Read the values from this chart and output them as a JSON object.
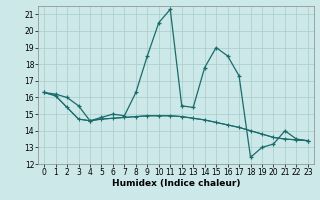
{
  "title": "",
  "xlabel": "Humidex (Indice chaleur)",
  "background_color": "#cce8e8",
  "grid_color": "#aacccc",
  "line_color": "#1a6b6b",
  "xlim": [
    -0.5,
    23.5
  ],
  "ylim": [
    12,
    21.5
  ],
  "yticks": [
    12,
    13,
    14,
    15,
    16,
    17,
    18,
    19,
    20,
    21
  ],
  "xticks": [
    0,
    1,
    2,
    3,
    4,
    5,
    6,
    7,
    8,
    9,
    10,
    11,
    12,
    13,
    14,
    15,
    16,
    17,
    18,
    19,
    20,
    21,
    22,
    23
  ],
  "series1": [
    16.3,
    16.2,
    16.0,
    15.5,
    14.6,
    14.8,
    15.0,
    14.9,
    16.3,
    18.5,
    20.5,
    21.3,
    15.5,
    15.4,
    17.8,
    19.0,
    18.5,
    17.3,
    12.4,
    13.0,
    13.2,
    14.0,
    13.5,
    13.4
  ],
  "series2": [
    16.3,
    16.1,
    15.4,
    14.7,
    14.6,
    14.7,
    14.75,
    14.8,
    14.85,
    14.9,
    14.9,
    14.9,
    14.85,
    14.75,
    14.65,
    14.5,
    14.35,
    14.2,
    14.0,
    13.8,
    13.6,
    13.5,
    13.45,
    13.4
  ],
  "series3": [
    16.3,
    16.1,
    15.4,
    14.7,
    14.6,
    14.7,
    14.75,
    14.8,
    14.85,
    14.9,
    14.9,
    14.9,
    14.85,
    14.75,
    14.65,
    14.5,
    14.35,
    14.2,
    14.0,
    13.8,
    13.6,
    13.5,
    13.45,
    13.4
  ],
  "xlabel_fontsize": 6.5,
  "tick_fontsize": 5.5
}
